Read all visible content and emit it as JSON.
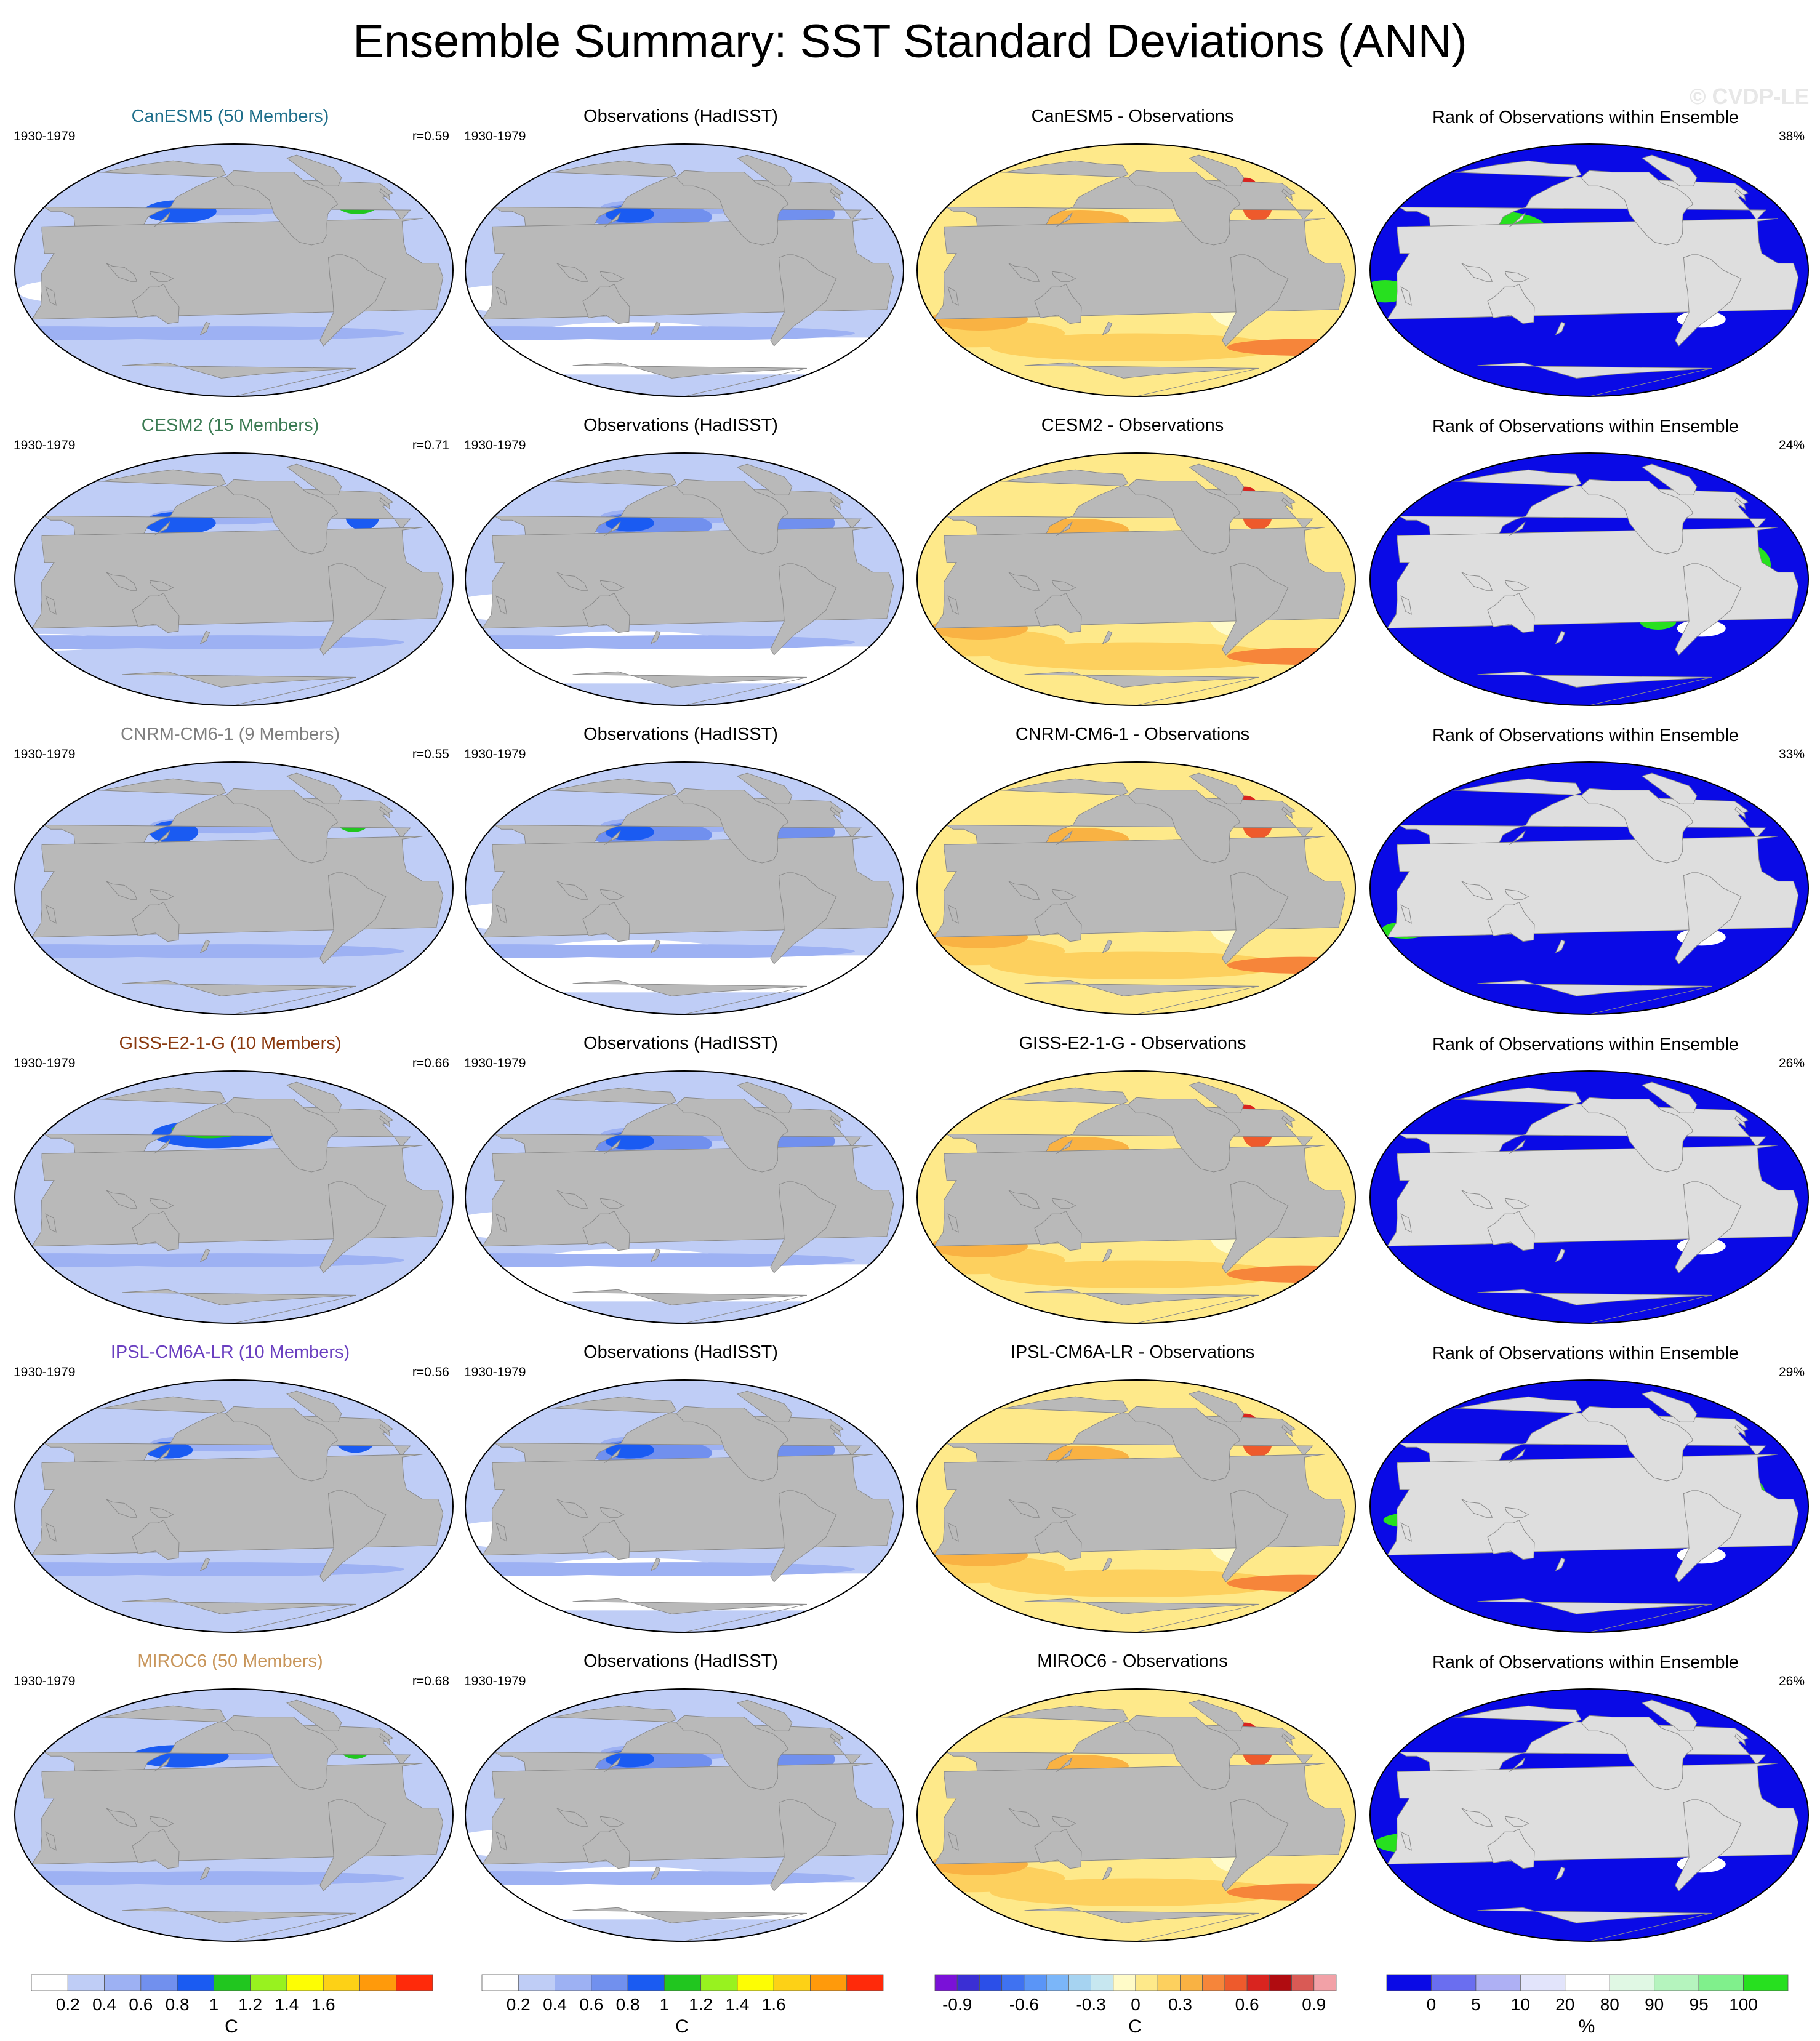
{
  "title": "Ensemble Summary: SST Standard Deviations (ANN)",
  "watermark": "© CVDP-LE",
  "rows": [
    {
      "model": "CanESM5 (50 Members)",
      "model_color": "#1f6f8b",
      "period": "1930-1979",
      "r": "r=0.59",
      "obs_title": "Observations (HadISST)",
      "obs_period": "1930-1979",
      "diff_title": "CanESM5 - Observations",
      "rank_title": "Rank of Observations within Ensemble",
      "rank_pct": "38%",
      "pattern": 0
    },
    {
      "model": "CESM2 (15 Members)",
      "model_color": "#3b7b53",
      "period": "1930-1979",
      "r": "r=0.71",
      "obs_title": "Observations (HadISST)",
      "obs_period": "1930-1979",
      "diff_title": "CESM2 - Observations",
      "rank_title": "Rank of Observations within Ensemble",
      "rank_pct": "24%",
      "pattern": 1
    },
    {
      "model": "CNRM-CM6-1 (9 Members)",
      "model_color": "#7f7f7f",
      "period": "1930-1979",
      "r": "r=0.55",
      "obs_title": "Observations (HadISST)",
      "obs_period": "1930-1979",
      "diff_title": "CNRM-CM6-1 - Observations",
      "rank_title": "Rank of Observations within Ensemble",
      "rank_pct": "33%",
      "pattern": 2
    },
    {
      "model": "GISS-E2-1-G (10 Members)",
      "model_color": "#8b3a10",
      "period": "1930-1979",
      "r": "r=0.66",
      "obs_title": "Observations (HadISST)",
      "obs_period": "1930-1979",
      "diff_title": "GISS-E2-1-G - Observations",
      "rank_title": "Rank of Observations within Ensemble",
      "rank_pct": "26%",
      "pattern": 3
    },
    {
      "model": "IPSL-CM6A-LR (10 Members)",
      "model_color": "#6a3fc0",
      "period": "1930-1979",
      "r": "r=0.56",
      "obs_title": "Observations (HadISST)",
      "obs_period": "1930-1979",
      "diff_title": "IPSL-CM6A-LR - Observations",
      "rank_title": "Rank of Observations within Ensemble",
      "rank_pct": "29%",
      "pattern": 4
    },
    {
      "model": "MIROC6 (50 Members)",
      "model_color": "#c8955a",
      "period": "1930-1979",
      "r": "r=0.68",
      "obs_title": "Observations (HadISST)",
      "obs_period": "1930-1979",
      "diff_title": "MIROC6 - Observations",
      "rank_title": "Rank of Observations within Ensemble",
      "rank_pct": "26%",
      "pattern": 5
    }
  ],
  "colorbars": {
    "sd": {
      "colors": [
        "#ffffff",
        "#bfcdf6",
        "#9db1f3",
        "#7190ee",
        "#1a5bf2",
        "#21c61f",
        "#98f21f",
        "#fdfd04",
        "#fdd116",
        "#ff9a0b",
        "#ff2a0a"
      ],
      "labels": [
        "0.2",
        "0.4",
        "0.6",
        "0.8",
        "1",
        "1.2",
        "1.4",
        "1.6"
      ],
      "unit": "C"
    },
    "diff": {
      "colors": [
        "#7a11d8",
        "#3a2fd4",
        "#2b4fe8",
        "#3f72f1",
        "#5a95f7",
        "#7bb6f9",
        "#a6d3f1",
        "#c7e7f0",
        "#fffbc8",
        "#fee98a",
        "#fdd05e",
        "#f9b243",
        "#f6853a",
        "#ee5a2c",
        "#d9241f",
        "#b00c10",
        "#d95a55",
        "#f2a1a7"
      ],
      "labels": [
        "-0.9",
        "-0.6",
        "-0.3",
        "0",
        "0.3",
        "0.6",
        "0.9"
      ],
      "unit": "C"
    },
    "rank": {
      "colors": [
        "#0a0ae6",
        "#6a6ef0",
        "#aeb0f4",
        "#e2e4fb",
        "#ffffff",
        "#e0f8e4",
        "#b5f4be",
        "#80f08c",
        "#27e01f"
      ],
      "labels": [
        "0",
        "5",
        "10",
        "20",
        "80",
        "90",
        "95",
        "100"
      ],
      "unit": "%"
    }
  }
}
